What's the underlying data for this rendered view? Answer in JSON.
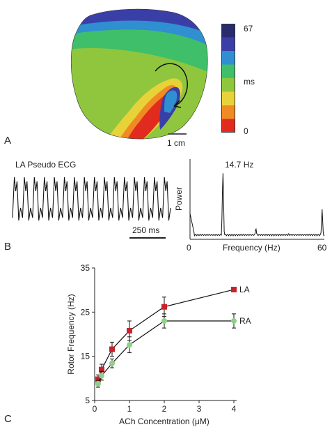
{
  "panels": {
    "a": "A",
    "b": "B",
    "c": "C"
  },
  "panel_a": {
    "colorbar_max": "67",
    "colorbar_unit": "ms",
    "colorbar_min": "0",
    "scale_label": "1 cm",
    "colorbar_colors": [
      "#2a2b6e",
      "#3a3fa8",
      "#2f8fd0",
      "#3fbf6a",
      "#8fc63e",
      "#e8d23a",
      "#f08b24",
      "#e22b1f"
    ]
  },
  "panel_b": {
    "ecg_title": "LA Pseudo ECG",
    "ecg_scale": "250 ms",
    "peak_label": "14.7 Hz",
    "spectrum_ylabel": "Power",
    "spectrum_xlabel": "Frequency (Hz)",
    "spectrum_xmin": "0",
    "spectrum_xmax": "60"
  },
  "chart_data": {
    "type": "line",
    "xlabel": "ACh Concentration (μM)",
    "ylabel": "Rotor Frequency (Hz)",
    "xlim": [
      0,
      4
    ],
    "ylim": [
      5,
      35
    ],
    "x_ticks": [
      "0",
      "1",
      "2",
      "3",
      "4"
    ],
    "y_ticks": [
      "5",
      "15",
      "25",
      "35"
    ],
    "series": [
      {
        "name": "LA",
        "color": "#c8232c",
        "marker": "square",
        "x": [
          0.1,
          0.2,
          0.5,
          1,
          2,
          4
        ],
        "y": [
          9.8,
          12,
          16.6,
          20.8,
          26.2,
          30.1
        ],
        "err": [
          1,
          1.2,
          1.6,
          2.2,
          2.2,
          0
        ]
      },
      {
        "name": "RA",
        "color": "#8fd08a",
        "marker": "circle",
        "x": [
          0.1,
          0.2,
          0.5,
          1,
          2,
          4
        ],
        "y": [
          8.8,
          10.6,
          13.4,
          17.6,
          23,
          23
        ],
        "err": [
          0.8,
          1,
          1,
          1.8,
          1.6,
          1.6
        ]
      }
    ]
  }
}
